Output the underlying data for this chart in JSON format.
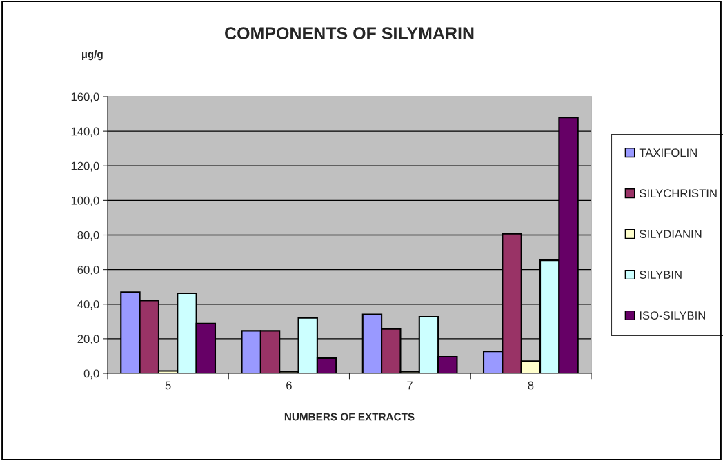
{
  "chart_data": {
    "type": "bar",
    "title": "COMPONENTS OF SILYMARIN",
    "ylabel": "µg/g",
    "xlabel": "NUMBERS OF EXTRACTS",
    "categories": [
      "5",
      "6",
      "7",
      "8"
    ],
    "series": [
      {
        "name": "TAXIFOLIN",
        "color": "#9999ff",
        "values": [
          47.0,
          24.6,
          34.1,
          12.7
        ]
      },
      {
        "name": "SILYCHRISTIN",
        "color": "#993366",
        "values": [
          42.1,
          24.6,
          25.7,
          80.7
        ]
      },
      {
        "name": "SILYDIANIN",
        "color": "#ffffcc",
        "values": [
          1.4,
          0.9,
          0.9,
          7.1
        ]
      },
      {
        "name": "SILYBIN",
        "color": "#ccffff",
        "values": [
          46.3,
          32.0,
          32.7,
          65.4
        ]
      },
      {
        "name": "ISO-SILYBIN",
        "color": "#660066",
        "values": [
          28.8,
          8.8,
          9.6,
          147.9
        ]
      }
    ],
    "ylim": [
      0,
      160
    ],
    "yticks": [
      {
        "value": 0,
        "label": "0,0"
      },
      {
        "value": 20,
        "label": "20,0"
      },
      {
        "value": 40,
        "label": "40,0"
      },
      {
        "value": 60,
        "label": "60,0"
      },
      {
        "value": 80,
        "label": "80,0"
      },
      {
        "value": 100,
        "label": "100,0"
      },
      {
        "value": 120,
        "label": "120,0"
      },
      {
        "value": 140,
        "label": "140,0"
      },
      {
        "value": 160,
        "label": "160,0"
      }
    ],
    "grid": "y",
    "legend": "right"
  }
}
